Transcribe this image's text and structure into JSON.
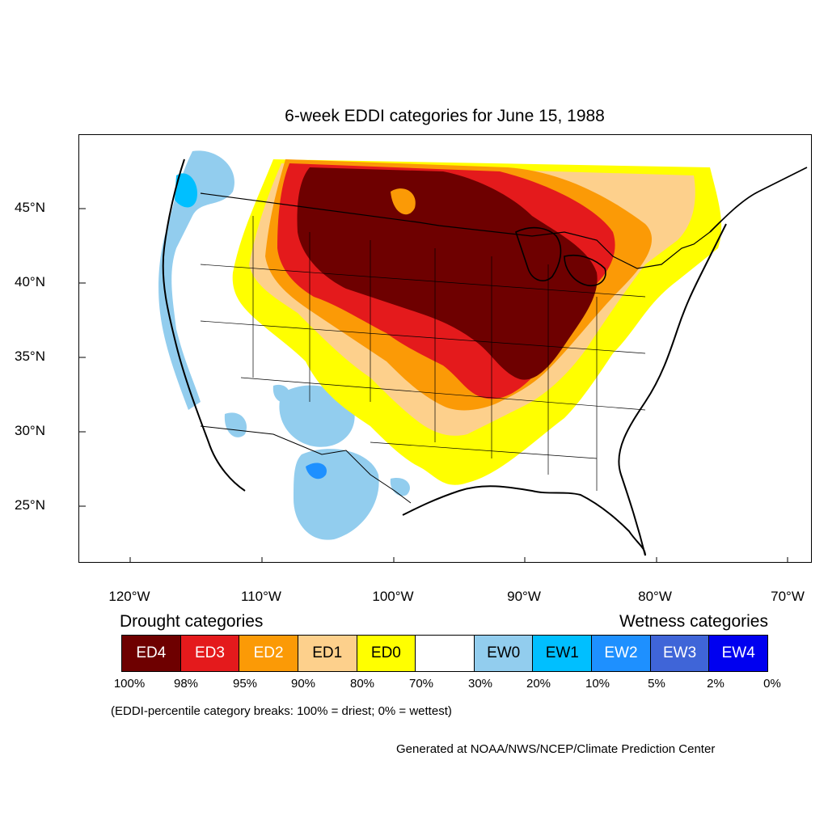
{
  "title": "6-week EDDI categories for June 15, 1988",
  "axes": {
    "lat_labels": [
      "45°N",
      "40°N",
      "35°N",
      "30°N",
      "25°N"
    ],
    "lon_labels": [
      "120°W",
      "110°W",
      "100°W",
      "90°W",
      "80°W",
      "70°W"
    ]
  },
  "legend": {
    "drought_title": "Drought categories",
    "wetness_title": "Wetness categories",
    "categories": [
      {
        "label": "ED4",
        "color": "#6e0000",
        "text_color": "#ffffff"
      },
      {
        "label": "ED3",
        "color": "#e41a1c",
        "text_color": "#ffffff"
      },
      {
        "label": "ED2",
        "color": "#fb9a06",
        "text_color": "#ffffff"
      },
      {
        "label": "ED1",
        "color": "#fdd08c",
        "text_color": "#000000"
      },
      {
        "label": "ED0",
        "color": "#ffff00",
        "text_color": "#000000"
      },
      {
        "label": "",
        "color": "#ffffff",
        "text_color": "#000000"
      },
      {
        "label": "EW0",
        "color": "#92cdee",
        "text_color": "#000000"
      },
      {
        "label": "EW1",
        "color": "#00bfff",
        "text_color": "#000000"
      },
      {
        "label": "EW2",
        "color": "#1e90ff",
        "text_color": "#ffffff"
      },
      {
        "label": "EW3",
        "color": "#3f65d8",
        "text_color": "#ffffff"
      },
      {
        "label": "EW4",
        "color": "#0000f0",
        "text_color": "#ffffff"
      }
    ],
    "percent_breaks": [
      "100%",
      "98%",
      "95%",
      "90%",
      "80%",
      "70%",
      "30%",
      "20%",
      "10%",
      "5%",
      "2%",
      "0%"
    ]
  },
  "note": "(EDDI-percentile category breaks: 100% = driest; 0% = wettest)",
  "credit": "Generated at NOAA/NWS/NCEP/Climate Prediction Center"
}
